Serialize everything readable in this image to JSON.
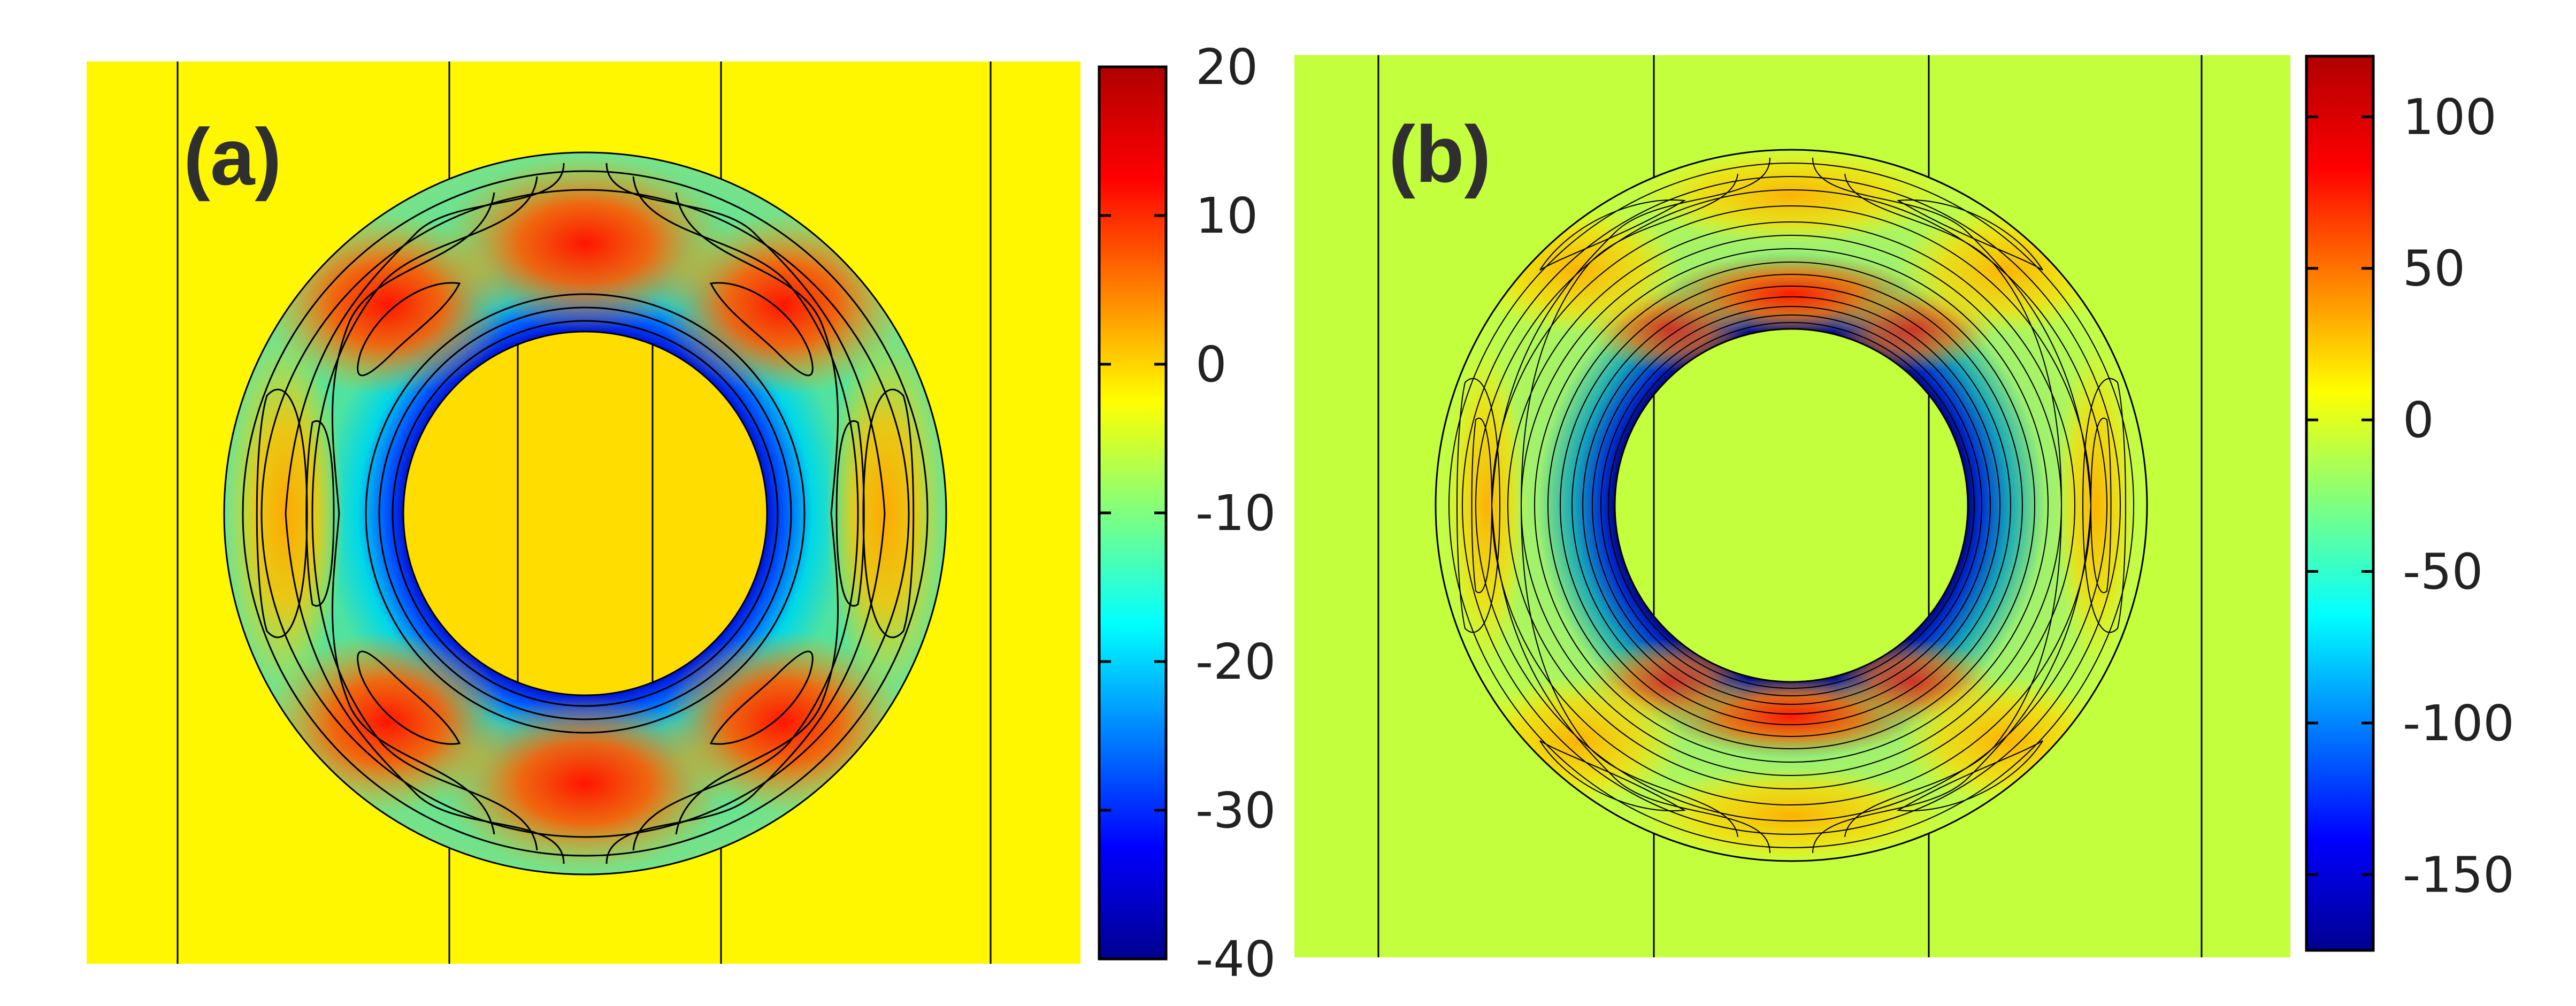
{
  "panels": [
    {
      "label": "(a)",
      "background_color": "#fff700",
      "inner_disk_color": "#ffdd00",
      "colorbar": {
        "min": -40,
        "max": 20,
        "ticks": [
          20,
          10,
          0,
          -10,
          -20,
          -30,
          -40
        ],
        "tick_labels": [
          "20",
          "10",
          "0",
          "-10",
          "-20",
          "-30",
          "-40"
        ]
      }
    },
    {
      "label": "(b)",
      "background_color": "#c3ff3c",
      "inner_disk_color": "#c3ff3c",
      "colorbar": {
        "min": -175,
        "max": 120,
        "ticks": [
          100,
          50,
          0,
          -50,
          -100,
          -150
        ],
        "tick_labels": [
          "100",
          "50",
          "0",
          "-50",
          "-100",
          "-150"
        ]
      }
    }
  ],
  "colormap": [
    "#00008f",
    "#0000ff",
    "#00ffff",
    "#7fff7f",
    "#ffff00",
    "#ff7f00",
    "#ff0000",
    "#7f0000"
  ]
}
